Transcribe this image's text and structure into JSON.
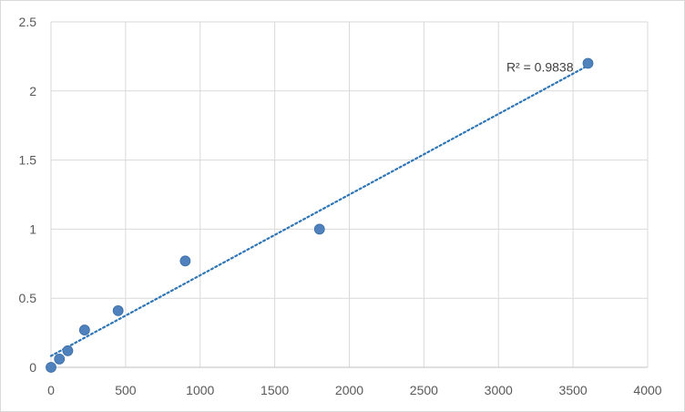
{
  "chart_data": {
    "type": "scatter",
    "xlim": [
      0,
      4000
    ],
    "ylim": [
      0,
      2.5
    ],
    "x_ticks": [
      "0",
      "500",
      "1000",
      "1500",
      "2000",
      "2500",
      "3000",
      "3500",
      "4000"
    ],
    "y_ticks": [
      "0",
      "0.5",
      "1",
      "1.5",
      "2",
      "2.5"
    ],
    "grid": true,
    "legend": "none",
    "series": [
      {
        "marker_color": "#4f81bd",
        "points": [
          {
            "x": 0,
            "y": 0.0
          },
          {
            "x": 56.25,
            "y": 0.06
          },
          {
            "x": 112.5,
            "y": 0.12
          },
          {
            "x": 225,
            "y": 0.27
          },
          {
            "x": 450,
            "y": 0.41
          },
          {
            "x": 900,
            "y": 0.77
          },
          {
            "x": 1800,
            "y": 1.0
          },
          {
            "x": 3600,
            "y": 2.2
          }
        ]
      }
    ],
    "trendline": {
      "type": "linear",
      "style": "dotted",
      "color": "#2e75b6",
      "label": "R² = 0.9838"
    }
  }
}
